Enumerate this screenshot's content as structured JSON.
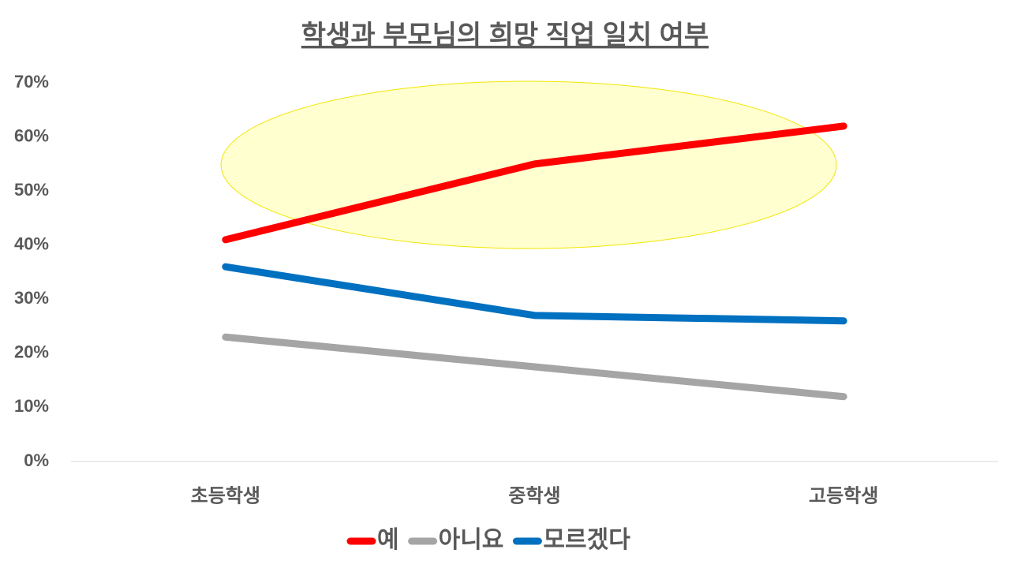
{
  "chart_data": {
    "type": "line",
    "title": "학생과 부모님의 희망 직업 일치 여부",
    "categories": [
      "초등학생",
      "중학생",
      "고등학생"
    ],
    "series": [
      {
        "name": "예",
        "color": "#ff0000",
        "values": [
          41,
          55,
          62
        ]
      },
      {
        "name": "아니요",
        "color": "#a5a5a5",
        "values": [
          23,
          17.5,
          12
        ]
      },
      {
        "name": "모르겠다",
        "color": "#0070c0",
        "values": [
          36,
          27,
          26
        ]
      }
    ],
    "ylim": [
      0,
      70
    ],
    "yticks": [
      {
        "value": 0,
        "label": "0%"
      },
      {
        "value": 10,
        "label": "10%"
      },
      {
        "value": 20,
        "label": "20%"
      },
      {
        "value": 30,
        "label": "30%"
      },
      {
        "value": 40,
        "label": "40%"
      },
      {
        "value": 50,
        "label": "50%"
      },
      {
        "value": 60,
        "label": "60%"
      },
      {
        "value": 70,
        "label": "70%"
      }
    ],
    "grid": false
  }
}
